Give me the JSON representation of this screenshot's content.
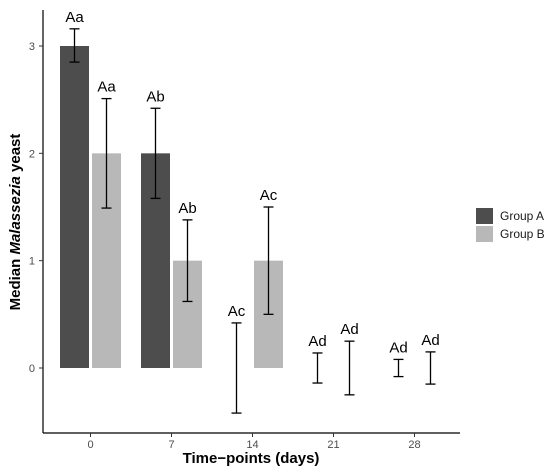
{
  "chart_data": {
    "type": "bar",
    "title": "",
    "xlabel": "Time−points (days)",
    "ylabel_parts": [
      {
        "text": "Median ",
        "italic": false
      },
      {
        "text": "Malassezia",
        "italic": true
      },
      {
        "text": " yeast",
        "italic": false
      }
    ],
    "categories": [
      "0",
      "7",
      "14",
      "21",
      "28"
    ],
    "yticks": [
      0,
      1,
      2,
      3
    ],
    "ylim": [
      -0.45,
      3.35
    ],
    "grid": false,
    "legend_position": "right",
    "series": [
      {
        "name": "Group A",
        "color": "#4d4d4d",
        "values": [
          3,
          2,
          0,
          0,
          0
        ],
        "error_low": [
          2.85,
          1.58,
          -0.42,
          -0.14,
          -0.08
        ],
        "error_high": [
          3.16,
          2.42,
          0.42,
          0.14,
          0.08
        ],
        "labels": [
          "Aa",
          "Ab",
          "Ac",
          "Ad",
          "Ad"
        ]
      },
      {
        "name": "Group B",
        "color": "#b8b8b8",
        "values": [
          2,
          1,
          1,
          0,
          0
        ],
        "error_low": [
          1.49,
          0.62,
          0.5,
          -0.25,
          -0.15
        ],
        "error_high": [
          2.51,
          1.38,
          1.5,
          0.25,
          0.15
        ],
        "labels": [
          "Aa",
          "Ab",
          "Ac",
          "Ad",
          "Ad"
        ]
      }
    ]
  }
}
